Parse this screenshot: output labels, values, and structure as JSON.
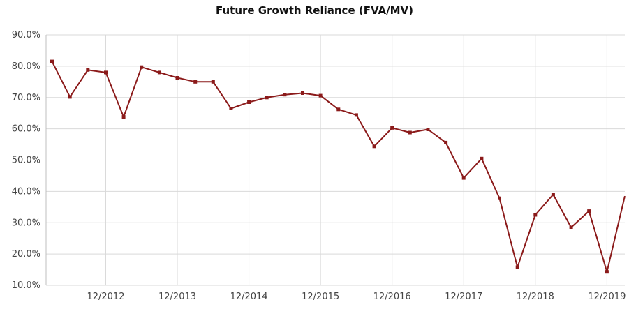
{
  "chart_data": {
    "type": "line",
    "title": "Future Growth Reliance (FVA/MV)",
    "xlabel": "",
    "ylabel": "",
    "ylim": [
      10,
      90
    ],
    "y_ticks": [
      "10.0%",
      "20.0%",
      "30.0%",
      "40.0%",
      "50.0%",
      "60.0%",
      "70.0%",
      "80.0%",
      "90.0%"
    ],
    "x_ticks": [
      "12/2012",
      "12/2013",
      "12/2014",
      "12/2015",
      "12/2016",
      "12/2017",
      "12/2018",
      "12/2019"
    ],
    "grid": true,
    "series": [
      {
        "color": "#8b1a1a",
        "x": [
          "03/2012",
          "06/2012",
          "09/2012",
          "12/2012",
          "03/2013",
          "06/2013",
          "09/2013",
          "12/2013",
          "03/2014",
          "06/2014",
          "09/2014",
          "12/2014",
          "03/2015",
          "06/2015",
          "09/2015",
          "12/2015",
          "03/2016",
          "06/2016",
          "09/2016",
          "12/2016",
          "03/2017",
          "06/2017",
          "09/2017",
          "12/2017",
          "03/2018",
          "06/2018",
          "09/2018",
          "12/2018",
          "03/2019",
          "06/2019",
          "09/2019",
          "12/2019",
          "03/2020"
        ],
        "values": [
          81.5,
          70.2,
          78.8,
          78.0,
          63.8,
          79.7,
          78.0,
          76.3,
          75.0,
          75.0,
          66.5,
          68.5,
          70.0,
          70.9,
          71.4,
          70.6,
          66.2,
          64.4,
          54.4,
          60.3,
          58.8,
          59.8,
          55.6,
          44.3,
          50.5,
          37.8,
          15.8,
          32.5,
          39.0,
          28.5,
          33.7,
          14.3,
          38.5
        ]
      }
    ]
  }
}
